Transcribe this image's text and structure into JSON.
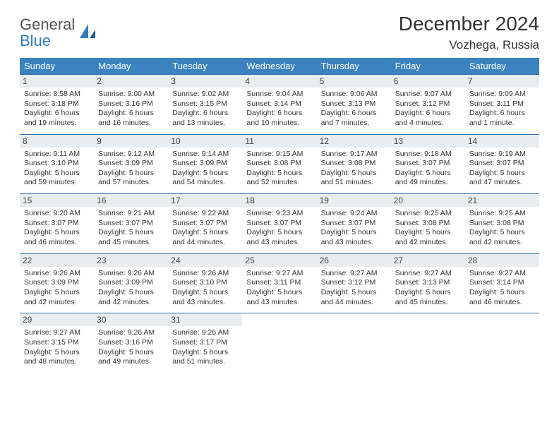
{
  "brand": {
    "word1": "General",
    "word2": "Blue"
  },
  "title": "December 2024",
  "location": "Vozhega, Russia",
  "colors": {
    "header_bg": "#3b83c0",
    "header_text": "#ffffff",
    "daynum_bg": "#e9edf0",
    "cell_border": "#2f6fa8",
    "logo_blue": "#2f7bbf",
    "text": "#333333",
    "background": "#ffffff"
  },
  "typography": {
    "title_fontsize": 28,
    "location_fontsize": 17,
    "dayheader_fontsize": 13,
    "daynum_fontsize": 12,
    "cell_fontsize": 10.5
  },
  "calendar": {
    "type": "table",
    "columns": [
      "Sunday",
      "Monday",
      "Tuesday",
      "Wednesday",
      "Thursday",
      "Friday",
      "Saturday"
    ],
    "weeks": [
      [
        {
          "n": "1",
          "sunrise": "8:58 AM",
          "sunset": "3:18 PM",
          "daylight": "6 hours and 19 minutes."
        },
        {
          "n": "2",
          "sunrise": "9:00 AM",
          "sunset": "3:16 PM",
          "daylight": "6 hours and 16 minutes."
        },
        {
          "n": "3",
          "sunrise": "9:02 AM",
          "sunset": "3:15 PM",
          "daylight": "6 hours and 13 minutes."
        },
        {
          "n": "4",
          "sunrise": "9:04 AM",
          "sunset": "3:14 PM",
          "daylight": "6 hours and 10 minutes."
        },
        {
          "n": "5",
          "sunrise": "9:06 AM",
          "sunset": "3:13 PM",
          "daylight": "6 hours and 7 minutes."
        },
        {
          "n": "6",
          "sunrise": "9:07 AM",
          "sunset": "3:12 PM",
          "daylight": "6 hours and 4 minutes."
        },
        {
          "n": "7",
          "sunrise": "9:09 AM",
          "sunset": "3:11 PM",
          "daylight": "6 hours and 1 minute."
        }
      ],
      [
        {
          "n": "8",
          "sunrise": "9:11 AM",
          "sunset": "3:10 PM",
          "daylight": "5 hours and 59 minutes."
        },
        {
          "n": "9",
          "sunrise": "9:12 AM",
          "sunset": "3:09 PM",
          "daylight": "5 hours and 57 minutes."
        },
        {
          "n": "10",
          "sunrise": "9:14 AM",
          "sunset": "3:09 PM",
          "daylight": "5 hours and 54 minutes."
        },
        {
          "n": "11",
          "sunrise": "9:15 AM",
          "sunset": "3:08 PM",
          "daylight": "5 hours and 52 minutes."
        },
        {
          "n": "12",
          "sunrise": "9:17 AM",
          "sunset": "3:08 PM",
          "daylight": "5 hours and 51 minutes."
        },
        {
          "n": "13",
          "sunrise": "9:18 AM",
          "sunset": "3:07 PM",
          "daylight": "5 hours and 49 minutes."
        },
        {
          "n": "14",
          "sunrise": "9:19 AM",
          "sunset": "3:07 PM",
          "daylight": "5 hours and 47 minutes."
        }
      ],
      [
        {
          "n": "15",
          "sunrise": "9:20 AM",
          "sunset": "3:07 PM",
          "daylight": "5 hours and 46 minutes."
        },
        {
          "n": "16",
          "sunrise": "9:21 AM",
          "sunset": "3:07 PM",
          "daylight": "5 hours and 45 minutes."
        },
        {
          "n": "17",
          "sunrise": "9:22 AM",
          "sunset": "3:07 PM",
          "daylight": "5 hours and 44 minutes."
        },
        {
          "n": "18",
          "sunrise": "9:23 AM",
          "sunset": "3:07 PM",
          "daylight": "5 hours and 43 minutes."
        },
        {
          "n": "19",
          "sunrise": "9:24 AM",
          "sunset": "3:07 PM",
          "daylight": "5 hours and 43 minutes."
        },
        {
          "n": "20",
          "sunrise": "9:25 AM",
          "sunset": "3:08 PM",
          "daylight": "5 hours and 42 minutes."
        },
        {
          "n": "21",
          "sunrise": "9:25 AM",
          "sunset": "3:08 PM",
          "daylight": "5 hours and 42 minutes."
        }
      ],
      [
        {
          "n": "22",
          "sunrise": "9:26 AM",
          "sunset": "3:09 PM",
          "daylight": "5 hours and 42 minutes."
        },
        {
          "n": "23",
          "sunrise": "9:26 AM",
          "sunset": "3:09 PM",
          "daylight": "5 hours and 42 minutes."
        },
        {
          "n": "24",
          "sunrise": "9:26 AM",
          "sunset": "3:10 PM",
          "daylight": "5 hours and 43 minutes."
        },
        {
          "n": "25",
          "sunrise": "9:27 AM",
          "sunset": "3:11 PM",
          "daylight": "5 hours and 43 minutes."
        },
        {
          "n": "26",
          "sunrise": "9:27 AM",
          "sunset": "3:12 PM",
          "daylight": "5 hours and 44 minutes."
        },
        {
          "n": "27",
          "sunrise": "9:27 AM",
          "sunset": "3:13 PM",
          "daylight": "5 hours and 45 minutes."
        },
        {
          "n": "28",
          "sunrise": "9:27 AM",
          "sunset": "3:14 PM",
          "daylight": "5 hours and 46 minutes."
        }
      ],
      [
        {
          "n": "29",
          "sunrise": "9:27 AM",
          "sunset": "3:15 PM",
          "daylight": "5 hours and 48 minutes."
        },
        {
          "n": "30",
          "sunrise": "9:26 AM",
          "sunset": "3:16 PM",
          "daylight": "5 hours and 49 minutes."
        },
        {
          "n": "31",
          "sunrise": "9:26 AM",
          "sunset": "3:17 PM",
          "daylight": "5 hours and 51 minutes."
        },
        null,
        null,
        null,
        null
      ]
    ]
  },
  "labels": {
    "sunrise": "Sunrise: ",
    "sunset": "Sunset: ",
    "daylight": "Daylight: "
  }
}
